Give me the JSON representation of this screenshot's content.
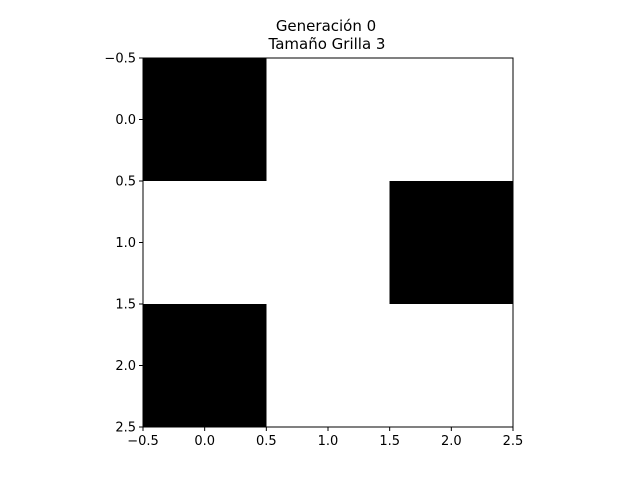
{
  "chart_data": {
    "type": "heatmap",
    "title": "Generación 0",
    "subtitle": "Tamaño Grilla 3",
    "xlabel": "",
    "ylabel": "",
    "xlim": [
      -0.5,
      2.5
    ],
    "ylim": [
      2.5,
      -0.5
    ],
    "y_axis_inverted": true,
    "grid": false,
    "colormap": {
      "0": "#ffffff",
      "1": "#000000"
    },
    "xticks": [
      -0.5,
      0.0,
      0.5,
      1.0,
      1.5,
      2.0,
      2.5
    ],
    "yticks": [
      -0.5,
      0.0,
      0.5,
      1.0,
      1.5,
      2.0,
      2.5
    ],
    "xtick_labels": [
      "−0.5",
      "0.0",
      "0.5",
      "1.0",
      "1.5",
      "2.0",
      "2.5"
    ],
    "ytick_labels": [
      "−0.5",
      "0.0",
      "0.5",
      "1.0",
      "1.5",
      "2.0",
      "2.5"
    ],
    "grid_values": [
      [
        1,
        0,
        0
      ],
      [
        0,
        0,
        1
      ],
      [
        1,
        0,
        0
      ]
    ]
  }
}
